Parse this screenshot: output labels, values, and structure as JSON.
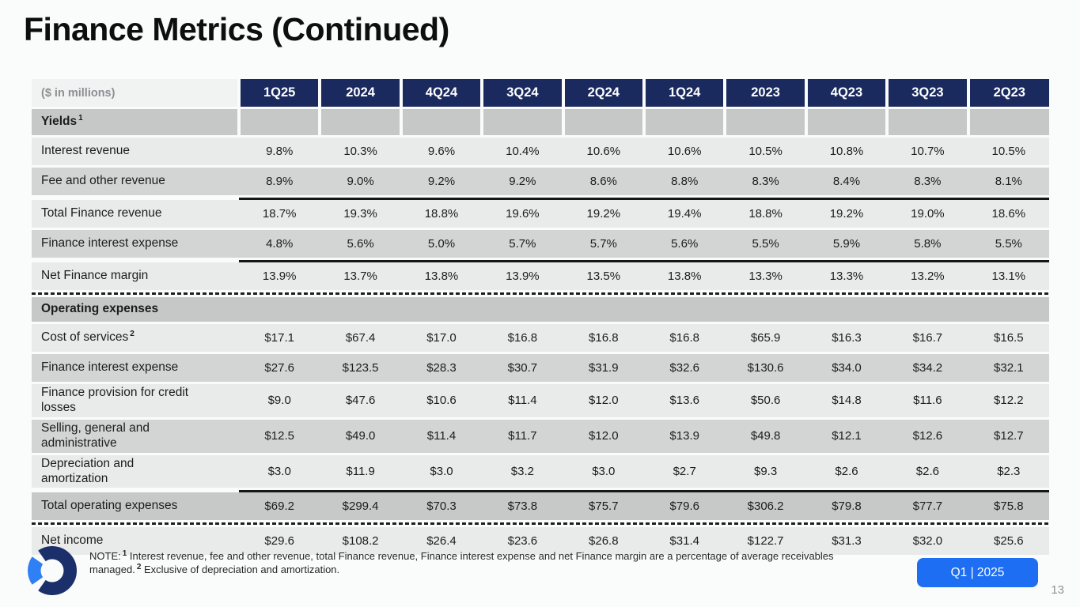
{
  "title": "Finance Metrics (Continued)",
  "table": {
    "corner_label": "($ in millions)",
    "columns": [
      "1Q25",
      "2024",
      "4Q24",
      "3Q24",
      "2Q24",
      "1Q24",
      "2023",
      "4Q23",
      "3Q23",
      "2Q23"
    ],
    "rows": [
      {
        "type": "section",
        "merged": false,
        "label": "Yields",
        "sup": "1"
      },
      {
        "type": "data",
        "shade": "light",
        "label": "Interest revenue",
        "values": [
          "9.8%",
          "10.3%",
          "9.6%",
          "10.4%",
          "10.6%",
          "10.6%",
          "10.5%",
          "10.8%",
          "10.7%",
          "10.5%"
        ]
      },
      {
        "type": "data",
        "shade": "dark",
        "label": "Fee and other revenue",
        "values": [
          "8.9%",
          "9.0%",
          "9.2%",
          "9.2%",
          "8.6%",
          "8.8%",
          "8.3%",
          "8.4%",
          "8.3%",
          "8.1%"
        ]
      },
      {
        "type": "data",
        "shade": "light",
        "label": "Total Finance revenue",
        "rule_top": true,
        "values": [
          "18.7%",
          "19.3%",
          "18.8%",
          "19.6%",
          "19.2%",
          "19.4%",
          "18.8%",
          "19.2%",
          "19.0%",
          "18.6%"
        ]
      },
      {
        "type": "data",
        "shade": "dark",
        "label": "Finance interest expense",
        "values": [
          "4.8%",
          "5.6%",
          "5.0%",
          "5.7%",
          "5.7%",
          "5.6%",
          "5.5%",
          "5.9%",
          "5.8%",
          "5.5%"
        ]
      },
      {
        "type": "data",
        "shade": "light",
        "label": "Net Finance margin",
        "rule_top": true,
        "dashed_bottom": true,
        "values": [
          "13.9%",
          "13.7%",
          "13.8%",
          "13.9%",
          "13.5%",
          "13.8%",
          "13.3%",
          "13.3%",
          "13.2%",
          "13.1%"
        ]
      },
      {
        "type": "section",
        "merged": true,
        "label": "Operating expenses"
      },
      {
        "type": "data",
        "shade": "light",
        "label": "Cost of services",
        "sup": "2",
        "values": [
          "$17.1",
          "$67.4",
          "$17.0",
          "$16.8",
          "$16.8",
          "$16.8",
          "$65.9",
          "$16.3",
          "$16.7",
          "$16.5"
        ]
      },
      {
        "type": "data",
        "shade": "dark",
        "label": "Finance interest expense",
        "values": [
          "$27.6",
          "$123.5",
          "$28.3",
          "$30.7",
          "$31.9",
          "$32.6",
          "$130.6",
          "$34.0",
          "$34.2",
          "$32.1"
        ]
      },
      {
        "type": "data",
        "shade": "light",
        "label": "Finance provision for credit losses",
        "values": [
          "$9.0",
          "$47.6",
          "$10.6",
          "$11.4",
          "$12.0",
          "$13.6",
          "$50.6",
          "$14.8",
          "$11.6",
          "$12.2"
        ]
      },
      {
        "type": "data",
        "shade": "dark",
        "label": "Selling, general and administrative",
        "values": [
          "$12.5",
          "$49.0",
          "$11.4",
          "$11.7",
          "$12.0",
          "$13.9",
          "$49.8",
          "$12.1",
          "$12.6",
          "$12.7"
        ]
      },
      {
        "type": "data",
        "shade": "light",
        "label": "Depreciation and amortization",
        "values": [
          "$3.0",
          "$11.9",
          "$3.0",
          "$3.2",
          "$3.0",
          "$2.7",
          "$9.3",
          "$2.6",
          "$2.6",
          "$2.3"
        ]
      },
      {
        "type": "data",
        "shade": "total",
        "label": "Total operating expenses",
        "rule_top": true,
        "dashed_bottom": true,
        "values": [
          "$69.2",
          "$299.4",
          "$70.3",
          "$73.8",
          "$75.7",
          "$79.6",
          "$306.2",
          "$79.8",
          "$77.7",
          "$75.8"
        ]
      },
      {
        "type": "data",
        "shade": "light",
        "label": "Net income",
        "values": [
          "$29.6",
          "$108.2",
          "$26.4",
          "$23.6",
          "$26.8",
          "$31.4",
          "$122.7",
          "$31.3",
          "$32.0",
          "$25.6"
        ]
      }
    ]
  },
  "footer": {
    "note_prefix": "NOTE:",
    "note_sup_1": "1",
    "note_text_1": "Interest revenue, fee and other revenue, total Finance revenue, Finance interest expense and net Finance margin are a percentage of average receivables managed.",
    "note_sup_2": "2",
    "note_text_2": "Exclusive of depreciation and amortization.",
    "badge_label": "Q1 | 2025",
    "page_number": "13"
  },
  "icons": {
    "logo": "ring-logo-icon"
  },
  "colors": {
    "header_navy": "#1a2a5e",
    "section_gray": "#c6c7c7",
    "row_light": "#e9eaea",
    "row_dark": "#d3d4d4",
    "row_total": "#c7c8c8",
    "badge_blue": "#1d6ef2",
    "logo_navy": "#1b2f6b",
    "logo_blue": "#2f80f5",
    "background": "#fafbfb"
  }
}
